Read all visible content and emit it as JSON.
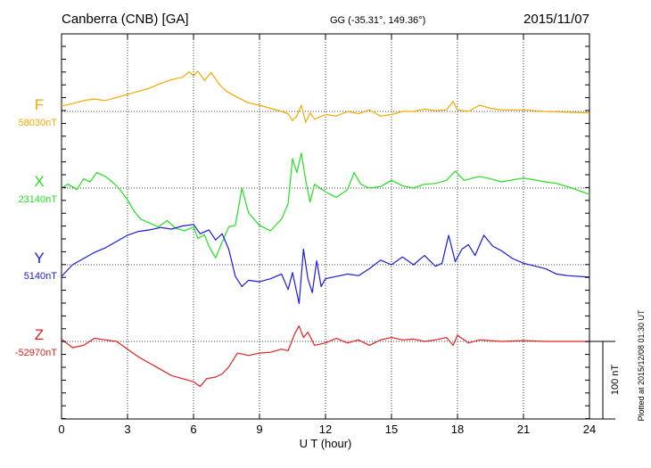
{
  "header": {
    "station": "Canberra (CNB)  [GA]",
    "coords": "GG (-35.31°, 149.36°)",
    "date": "2015/11/07"
  },
  "footer_note": "Plotted at 2015/12/08 01:30 UT",
  "colors": {
    "F": "#f2a900",
    "X": "#22e022",
    "Y": "#1a1adc",
    "Z": "#e02020",
    "grid": "#000000"
  },
  "chart_data": {
    "type": "line",
    "xlabel": "U T (hour)",
    "xlim": [
      0,
      24
    ],
    "xticks": [
      0,
      3,
      6,
      9,
      12,
      15,
      18,
      21,
      24
    ],
    "scale_bar": {
      "value": 100,
      "label": "100 nT"
    },
    "series": [
      {
        "name": "F",
        "baseline_label": "58030nT",
        "color": "#f2a900",
        "baseline_nT": 58030,
        "points": [
          [
            0,
            58037
          ],
          [
            0.5,
            58040
          ],
          [
            1,
            58044
          ],
          [
            1.5,
            58046
          ],
          [
            2,
            58044
          ],
          [
            2.5,
            58048
          ],
          [
            3,
            58052
          ],
          [
            3.5,
            58056
          ],
          [
            4,
            58060
          ],
          [
            4.5,
            58066
          ],
          [
            5,
            58071
          ],
          [
            5.5,
            58074
          ],
          [
            5.8,
            58081
          ],
          [
            6,
            58076
          ],
          [
            6.2,
            58082
          ],
          [
            6.5,
            58070
          ],
          [
            6.8,
            58080
          ],
          [
            7,
            58072
          ],
          [
            7.2,
            58064
          ],
          [
            7.5,
            58056
          ],
          [
            8,
            58048
          ],
          [
            8.5,
            58041
          ],
          [
            9,
            58038
          ],
          [
            9.5,
            58034
          ],
          [
            10,
            58030
          ],
          [
            10.3,
            58027
          ],
          [
            10.5,
            58018
          ],
          [
            10.7,
            58024
          ],
          [
            10.9,
            58038
          ],
          [
            11.1,
            58016
          ],
          [
            11.3,
            58028
          ],
          [
            11.5,
            58020
          ],
          [
            12,
            58026
          ],
          [
            12.5,
            58024
          ],
          [
            13,
            58030
          ],
          [
            13.5,
            58027
          ],
          [
            14,
            58032
          ],
          [
            14.5,
            58024
          ],
          [
            15,
            58026
          ],
          [
            15.5,
            58030
          ],
          [
            16,
            58030
          ],
          [
            16.5,
            58033
          ],
          [
            17,
            58031
          ],
          [
            17.5,
            58032
          ],
          [
            17.8,
            58043
          ],
          [
            18,
            58032
          ],
          [
            18.5,
            58030
          ],
          [
            19,
            58038
          ],
          [
            19.5,
            58034
          ],
          [
            20,
            58032
          ],
          [
            21,
            58032
          ],
          [
            22,
            58030
          ],
          [
            23,
            58029
          ],
          [
            24,
            58028
          ]
        ]
      },
      {
        "name": "X",
        "baseline_label": "23140nT",
        "color": "#22e022",
        "baseline_nT": 23140,
        "points": [
          [
            0,
            23140
          ],
          [
            0.3,
            23145
          ],
          [
            0.7,
            23138
          ],
          [
            1,
            23152
          ],
          [
            1.3,
            23148
          ],
          [
            1.6,
            23160
          ],
          [
            2,
            23155
          ],
          [
            2.3,
            23148
          ],
          [
            2.6,
            23140
          ],
          [
            3,
            23125
          ],
          [
            3.3,
            23110
          ],
          [
            3.6,
            23100
          ],
          [
            4,
            23095
          ],
          [
            4.4,
            23090
          ],
          [
            4.8,
            23098
          ],
          [
            5.2,
            23088
          ],
          [
            5.6,
            23085
          ],
          [
            6,
            23090
          ],
          [
            6.2,
            23075
          ],
          [
            6.5,
            23080
          ],
          [
            6.7,
            23065
          ],
          [
            7,
            23050
          ],
          [
            7.3,
            23070
          ],
          [
            7.6,
            23090
          ],
          [
            7.9,
            23092
          ],
          [
            8.2,
            23140
          ],
          [
            8.5,
            23108
          ],
          [
            9,
            23092
          ],
          [
            9.5,
            23085
          ],
          [
            10,
            23100
          ],
          [
            10.3,
            23120
          ],
          [
            10.5,
            23178
          ],
          [
            10.7,
            23160
          ],
          [
            10.9,
            23185
          ],
          [
            11.1,
            23150
          ],
          [
            11.3,
            23122
          ],
          [
            11.5,
            23145
          ],
          [
            12,
            23135
          ],
          [
            12.5,
            23128
          ],
          [
            13,
            23138
          ],
          [
            13.3,
            23160
          ],
          [
            13.6,
            23145
          ],
          [
            14,
            23140
          ],
          [
            14.5,
            23142
          ],
          [
            15,
            23150
          ],
          [
            15.5,
            23143
          ],
          [
            16,
            23140
          ],
          [
            16.5,
            23145
          ],
          [
            17,
            23146
          ],
          [
            17.5,
            23150
          ],
          [
            17.9,
            23162
          ],
          [
            18.3,
            23150
          ],
          [
            19,
            23155
          ],
          [
            19.5,
            23152
          ],
          [
            20,
            23148
          ],
          [
            21,
            23153
          ],
          [
            22,
            23148
          ],
          [
            22.5,
            23146
          ],
          [
            23,
            23142
          ],
          [
            24,
            23132
          ]
        ]
      },
      {
        "name": "Y",
        "baseline_label": "5140nT",
        "color": "#1a1adc",
        "baseline_nT": 5140,
        "points": [
          [
            0,
            5125
          ],
          [
            0.5,
            5140
          ],
          [
            1,
            5148
          ],
          [
            1.5,
            5156
          ],
          [
            2,
            5162
          ],
          [
            2.5,
            5170
          ],
          [
            3,
            5178
          ],
          [
            3.5,
            5183
          ],
          [
            4,
            5185
          ],
          [
            4.5,
            5188
          ],
          [
            5,
            5186
          ],
          [
            5.5,
            5190
          ],
          [
            6,
            5192
          ],
          [
            6.3,
            5180
          ],
          [
            6.7,
            5185
          ],
          [
            7,
            5172
          ],
          [
            7.3,
            5180
          ],
          [
            7.6,
            5160
          ],
          [
            7.9,
            5125
          ],
          [
            8.2,
            5112
          ],
          [
            8.5,
            5120
          ],
          [
            9,
            5118
          ],
          [
            9.5,
            5122
          ],
          [
            10,
            5128
          ],
          [
            10.3,
            5108
          ],
          [
            10.5,
            5130
          ],
          [
            10.8,
            5090
          ],
          [
            11,
            5160
          ],
          [
            11.2,
            5122
          ],
          [
            11.4,
            5104
          ],
          [
            11.6,
            5145
          ],
          [
            11.8,
            5112
          ],
          [
            12,
            5122
          ],
          [
            12.5,
            5125
          ],
          [
            13,
            5128
          ],
          [
            13.5,
            5126
          ],
          [
            14,
            5135
          ],
          [
            14.5,
            5146
          ],
          [
            15,
            5140
          ],
          [
            15.5,
            5150
          ],
          [
            16,
            5140
          ],
          [
            16.5,
            5152
          ],
          [
            17,
            5138
          ],
          [
            17.3,
            5142
          ],
          [
            17.6,
            5178
          ],
          [
            17.9,
            5144
          ],
          [
            18.2,
            5160
          ],
          [
            18.5,
            5166
          ],
          [
            18.8,
            5152
          ],
          [
            19.2,
            5178
          ],
          [
            19.6,
            5164
          ],
          [
            20,
            5158
          ],
          [
            20.5,
            5148
          ],
          [
            21,
            5142
          ],
          [
            22,
            5135
          ],
          [
            22.5,
            5128
          ],
          [
            23,
            5126
          ],
          [
            24,
            5124
          ]
        ]
      },
      {
        "name": "Z",
        "baseline_label": "-52970nT",
        "color": "#e02020",
        "baseline_nT": -52970,
        "points": [
          [
            0,
            -52967
          ],
          [
            0.5,
            -52978
          ],
          [
            1,
            -52975
          ],
          [
            1.5,
            -52966
          ],
          [
            2,
            -52968
          ],
          [
            2.5,
            -52970
          ],
          [
            3,
            -52980
          ],
          [
            3.5,
            -52990
          ],
          [
            4,
            -52998
          ],
          [
            4.5,
            -53006
          ],
          [
            5,
            -53014
          ],
          [
            5.5,
            -53018
          ],
          [
            6,
            -53022
          ],
          [
            6.3,
            -53028
          ],
          [
            6.6,
            -53018
          ],
          [
            7,
            -53016
          ],
          [
            7.3,
            -53012
          ],
          [
            7.6,
            -53003
          ],
          [
            8,
            -52985
          ],
          [
            8.5,
            -52988
          ],
          [
            9,
            -52985
          ],
          [
            9.5,
            -52984
          ],
          [
            10,
            -52980
          ],
          [
            10.3,
            -52982
          ],
          [
            10.6,
            -52960
          ],
          [
            10.8,
            -52950
          ],
          [
            11,
            -52965
          ],
          [
            11.2,
            -52958
          ],
          [
            11.5,
            -52975
          ],
          [
            12,
            -52972
          ],
          [
            12.5,
            -52966
          ],
          [
            13,
            -52972
          ],
          [
            13.5,
            -52968
          ],
          [
            14,
            -52975
          ],
          [
            14.5,
            -52968
          ],
          [
            15,
            -52965
          ],
          [
            15.5,
            -52968
          ],
          [
            16,
            -52967
          ],
          [
            16.5,
            -52970
          ],
          [
            17,
            -52968
          ],
          [
            17.5,
            -52965
          ],
          [
            17.8,
            -52975
          ],
          [
            18,
            -52962
          ],
          [
            18.5,
            -52972
          ],
          [
            19,
            -52968
          ],
          [
            20,
            -52970
          ],
          [
            21,
            -52969
          ],
          [
            22,
            -52970
          ],
          [
            23,
            -52970
          ],
          [
            24,
            -52970
          ]
        ]
      }
    ]
  }
}
